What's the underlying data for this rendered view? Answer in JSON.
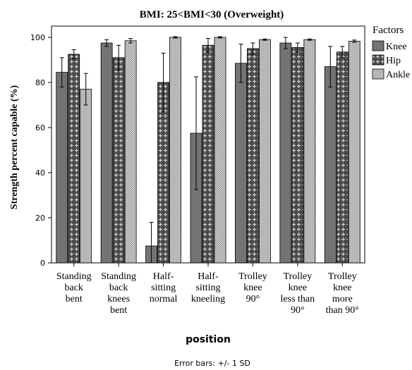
{
  "chart_data": {
    "type": "bar",
    "title": "BMI: 25<BMI<30 (Overweight)",
    "xlabel": "position",
    "ylabel": "Strength percent capable (%)",
    "ylim": [
      0,
      105
    ],
    "yticks": [
      0,
      20,
      40,
      60,
      80,
      100
    ],
    "grid": false,
    "legend_position": "right",
    "legend_title": "Factors",
    "footnote": "Error bars: +/- 1 SD",
    "categories": [
      [
        "Standing",
        "back",
        "bent"
      ],
      [
        "Standing",
        "back",
        "knees",
        "bent"
      ],
      [
        "Half-",
        "sitting",
        "normal"
      ],
      [
        "Half-",
        "sitting",
        "kneeling"
      ],
      [
        "Trolley",
        "knee",
        "90°"
      ],
      [
        "Trolley",
        "knee",
        "less than",
        "90°"
      ],
      [
        "Trolley",
        "knee",
        "more",
        "than 90°"
      ]
    ],
    "series": [
      {
        "name": "Knee",
        "values": [
          84.5,
          97.5,
          7.5,
          57.5,
          88.5,
          97.5,
          87
        ],
        "error": [
          6.5,
          1.5,
          10.5,
          25,
          8.5,
          2.5,
          9
        ],
        "color": "#737373",
        "pattern": "solid"
      },
      {
        "name": "Hip",
        "values": [
          92.5,
          91,
          80,
          96.5,
          95,
          95.5,
          93.5
        ],
        "error": [
          2,
          5.5,
          13,
          3,
          2.5,
          2,
          2.5
        ],
        "color": "#4a4a4a",
        "pattern": "cross"
      },
      {
        "name": "Ankle",
        "values": [
          77,
          98.5,
          100,
          100,
          99,
          99,
          98.3
        ],
        "error": [
          7,
          1,
          0.3,
          0.3,
          0.3,
          0.3,
          0.5
        ],
        "color": "#b4b4b4",
        "pattern": "dots"
      }
    ]
  }
}
